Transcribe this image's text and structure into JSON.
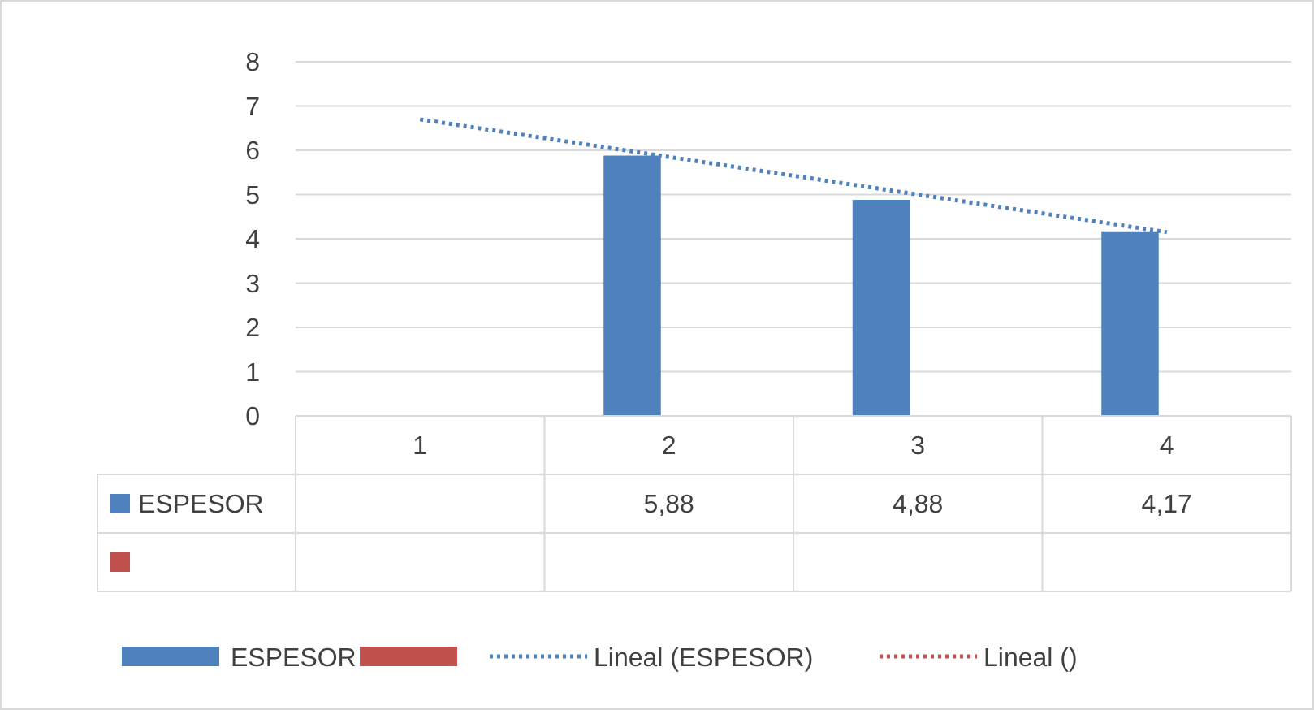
{
  "chart_data": {
    "type": "bar",
    "categories": [
      "1",
      "2",
      "3",
      "4"
    ],
    "series": [
      {
        "name": "ESPESOR",
        "color": "#4f81bd",
        "values": [
          null,
          5.88,
          4.88,
          4.17
        ],
        "value_labels": [
          null,
          "5,88",
          "4,88",
          "4,17"
        ]
      },
      {
        "color": "#c0504d",
        "values": [
          null,
          null,
          null,
          null
        ]
      },
      {
        "name": "Lineal (ESPESOR)",
        "type": "line",
        "color": "#4f81bd",
        "line_style": "dotted",
        "values": [
          6.7,
          5.85,
          5.0,
          4.15
        ]
      },
      {
        "name": "Lineal ()",
        "type": "line",
        "color": "#c0504d",
        "line_style": "dotted",
        "values": [
          null,
          null,
          null,
          null
        ]
      }
    ],
    "ylim": [
      0,
      8
    ],
    "yticks": [
      0,
      1,
      2,
      3,
      4,
      5,
      6,
      7,
      8
    ],
    "grid": "y",
    "legend": "bottom"
  }
}
